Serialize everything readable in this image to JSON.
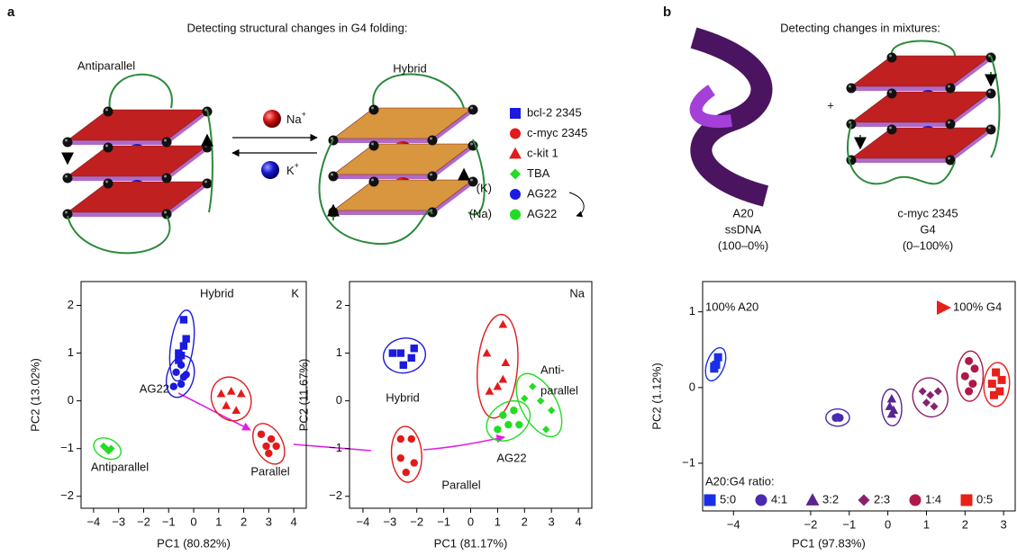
{
  "panel_a": {
    "label": "a",
    "title": "Detecting structural changes in G4 folding:",
    "left_structure": "Antiparallel",
    "right_structure": "Hybrid",
    "ion_na": "Na",
    "ion_na_charge": "+",
    "ion_k": "K",
    "ion_k_charge": "+",
    "legend": [
      {
        "name": "bcl-2 2345",
        "marker": "square",
        "color": "#1a1ae0"
      },
      {
        "name": "c-myc 2345",
        "marker": "circle",
        "color": "#e31a1a"
      },
      {
        "name": "c-kit 1",
        "marker": "triangle",
        "color": "#e31a1a"
      },
      {
        "name": "TBA",
        "marker": "diamond",
        "color": "#22dd22"
      },
      {
        "name": "AG22",
        "marker": "circle",
        "color": "#1a1ae0",
        "prefix": "(K)"
      },
      {
        "name": "AG22",
        "marker": "circle",
        "color": "#22dd22",
        "prefix": "(Na)"
      }
    ]
  },
  "panel_b": {
    "label": "b",
    "title": "Detecting changes in mixtures:",
    "plus": "+",
    "left_lines": [
      "A20",
      "ssDNA",
      "(100–0%)"
    ],
    "right_lines": [
      "c-myc 2345",
      "G4",
      "(0–100%)"
    ]
  },
  "chart_data": [
    {
      "type": "scatter",
      "xlabel": "PC1 (80.82%)",
      "ylabel": "PC2 (13.02%)",
      "corner_label": "K",
      "xlim": [
        -4.5,
        4.5
      ],
      "ylim": [
        -2.25,
        2.5
      ],
      "xticks": [
        {
          "value": -4,
          "label": "−4"
        },
        {
          "value": -3,
          "label": "−3"
        },
        {
          "value": -2,
          "label": "−2"
        },
        {
          "value": -1,
          "label": "−1"
        },
        0,
        1,
        2,
        3,
        4
      ],
      "yticks": [
        {
          "value": -2,
          "label": "−2"
        },
        {
          "value": -1,
          "label": "−1"
        },
        0,
        1,
        2
      ],
      "series": [
        {
          "marker": "square",
          "color": "#1a1ae0",
          "x": [
            -0.4,
            -0.3,
            -0.4,
            -0.6,
            -0.5,
            -0.6
          ],
          "values": [
            1.7,
            1.3,
            1.15,
            1.0,
            0.95,
            0.85
          ]
        },
        {
          "marker": "circle",
          "color": "#1a1ae0",
          "x": [
            -0.5,
            -0.7,
            -0.4,
            -0.8,
            -0.5,
            -0.3
          ],
          "values": [
            0.75,
            0.6,
            0.5,
            0.3,
            0.35,
            0.55
          ]
        },
        {
          "marker": "triangle",
          "color": "#e31a1a",
          "x": [
            1.1,
            1.5,
            1.9,
            1.3,
            1.7
          ],
          "values": [
            0.15,
            0.2,
            0.15,
            -0.1,
            -0.2
          ]
        },
        {
          "marker": "circle",
          "color": "#e31a1a",
          "x": [
            2.7,
            3.1,
            2.9,
            3.3,
            3.0
          ],
          "values": [
            -0.7,
            -0.8,
            -0.95,
            -0.95,
            -1.1
          ]
        },
        {
          "marker": "diamond",
          "color": "#22dd22",
          "x": [
            -3.6,
            -3.4,
            -3.5,
            -3.3
          ],
          "values": [
            -0.95,
            -1.05,
            -1.0,
            -1.0
          ]
        }
      ],
      "annotations": [
        {
          "text": "Hybrid",
          "color": "#1a1ae0"
        },
        {
          "text": "AG22",
          "color": "#1a1ae0"
        },
        {
          "text": "Antiparallel",
          "color": "#22dd22"
        },
        {
          "text": "Parallel",
          "color": "#e31a1a"
        }
      ]
    },
    {
      "type": "scatter",
      "xlabel": "PC1 (81.17%)",
      "ylabel": "PC2 (11.67%)",
      "corner_label": "Na",
      "xlim": [
        -4.5,
        4.5
      ],
      "ylim": [
        -2.25,
        2.5
      ],
      "xticks": [
        {
          "value": -4,
          "label": "−4"
        },
        {
          "value": -3,
          "label": "−3"
        },
        {
          "value": -2,
          "label": "−2"
        },
        {
          "value": -1,
          "label": "−1"
        },
        0,
        1,
        2,
        3,
        4
      ],
      "yticks": [
        {
          "value": -2,
          "label": "−2"
        },
        {
          "value": -1,
          "label": "−1"
        },
        0,
        1,
        2
      ],
      "series": [
        {
          "marker": "square",
          "color": "#1a1ae0",
          "x": [
            -2.6,
            -2.1,
            -2.2,
            -2.9,
            -2.5
          ],
          "values": [
            1.0,
            1.1,
            0.9,
            1.0,
            0.75
          ]
        },
        {
          "marker": "triangle",
          "color": "#e31a1a",
          "x": [
            1.2,
            0.6,
            1.3,
            1.0,
            0.7,
            1.2
          ],
          "values": [
            1.6,
            1.0,
            0.8,
            0.3,
            0.2,
            0.45
          ]
        },
        {
          "marker": "circle",
          "color": "#e31a1a",
          "x": [
            -2.6,
            -2.2,
            -2.6,
            -2.1,
            -2.4
          ],
          "values": [
            -0.8,
            -0.8,
            -1.2,
            -1.3,
            -1.5
          ]
        },
        {
          "marker": "circle",
          "color": "#22dd22",
          "x": [
            1.2,
            1.6,
            1.4,
            1.8,
            1.0
          ],
          "values": [
            -0.3,
            -0.2,
            -0.5,
            -0.5,
            -0.6
          ]
        },
        {
          "marker": "diamond",
          "color": "#22dd22",
          "x": [
            2.0,
            2.3,
            2.6,
            3.0,
            2.8
          ],
          "values": [
            0.05,
            0.3,
            0.0,
            -0.2,
            -0.6
          ]
        }
      ],
      "annotations": [
        {
          "text": "Hybrid",
          "color": "#1a1ae0"
        },
        {
          "text": "Parallel",
          "color": "#e31a1a"
        },
        {
          "text": "AG22",
          "color": "#22dd22"
        },
        {
          "text": "Anti-",
          "color": "#22dd22"
        },
        {
          "text": "parallel",
          "color": "#22dd22"
        }
      ]
    },
    {
      "type": "scatter",
      "xlabel": "PC1 (97.83%)",
      "ylabel": "PC2 (1.12%)",
      "legend_title": "A20:G4 ratio:",
      "xlim": [
        -4.8,
        3.3
      ],
      "ylim": [
        -1.63,
        1.4
      ],
      "xticks": [
        {
          "value": -4,
          "label": "−4"
        },
        {
          "value": -2,
          "label": "−2"
        },
        {
          "value": -1,
          "label": "−1"
        },
        0,
        1,
        2,
        3
      ],
      "yticks": [
        {
          "value": -1,
          "label": "−1"
        },
        0,
        1
      ],
      "series": [
        {
          "name": "5:0",
          "marker": "square",
          "color": "#1a2ee8",
          "x": [
            -4.5,
            -4.45,
            -4.4,
            -4.5
          ],
          "values": [
            0.25,
            0.3,
            0.4,
            0.28
          ]
        },
        {
          "name": "4:1",
          "marker": "circle",
          "color": "#4a2ab0",
          "x": [
            -1.35,
            -1.3,
            -1.25
          ],
          "values": [
            -0.4,
            -0.39,
            -0.4
          ]
        },
        {
          "name": "3:2",
          "marker": "triangle",
          "color": "#5a2590",
          "x": [
            0.1,
            0.05,
            0.15,
            0.1
          ],
          "values": [
            -0.15,
            -0.25,
            -0.3,
            -0.35
          ]
        },
        {
          "name": "2:3",
          "marker": "diamond",
          "color": "#8a2070",
          "x": [
            0.9,
            1.1,
            1.3,
            1.0,
            1.2
          ],
          "values": [
            -0.05,
            -0.1,
            -0.05,
            -0.2,
            -0.25
          ]
        },
        {
          "name": "1:4",
          "marker": "circle",
          "color": "#b01848",
          "x": [
            2.1,
            2.25,
            2.0,
            2.2,
            2.1
          ],
          "values": [
            0.35,
            0.25,
            0.15,
            0.05,
            -0.05
          ]
        },
        {
          "name": "0:5",
          "marker": "square",
          "color": "#e8201a",
          "x": [
            2.8,
            2.95,
            2.7,
            2.9,
            2.75
          ],
          "values": [
            0.2,
            0.1,
            0.05,
            -0.05,
            -0.1
          ]
        }
      ],
      "annotations": [
        {
          "text": "100% A20",
          "color": "#1a2ee8"
        },
        {
          "text": "100% G4",
          "color": "#e8201a"
        }
      ]
    }
  ]
}
